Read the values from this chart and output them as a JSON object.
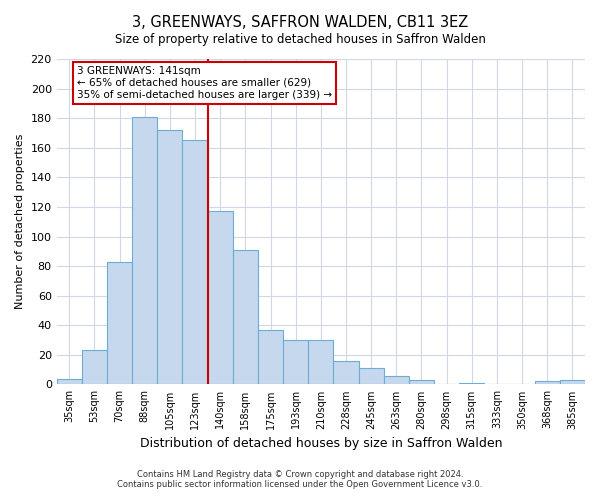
{
  "title": "3, GREENWAYS, SAFFRON WALDEN, CB11 3EZ",
  "subtitle": "Size of property relative to detached houses in Saffron Walden",
  "xlabel": "Distribution of detached houses by size in Saffron Walden",
  "ylabel": "Number of detached properties",
  "footer_line1": "Contains HM Land Registry data © Crown copyright and database right 2024.",
  "footer_line2": "Contains public sector information licensed under the Open Government Licence v3.0.",
  "categories": [
    "35sqm",
    "53sqm",
    "70sqm",
    "88sqm",
    "105sqm",
    "123sqm",
    "140sqm",
    "158sqm",
    "175sqm",
    "193sqm",
    "210sqm",
    "228sqm",
    "245sqm",
    "263sqm",
    "280sqm",
    "298sqm",
    "315sqm",
    "333sqm",
    "350sqm",
    "368sqm",
    "385sqm"
  ],
  "values": [
    4,
    23,
    83,
    181,
    172,
    165,
    117,
    91,
    37,
    30,
    30,
    16,
    11,
    6,
    3,
    0,
    1,
    0,
    0,
    2,
    3
  ],
  "bar_color": "#c5d8ed",
  "bar_edge_color": "#6aaed6",
  "vline_x_index": 6,
  "vline_color": "#cc0000",
  "annotation_title": "3 GREENWAYS: 141sqm",
  "annotation_line1": "← 65% of detached houses are smaller (629)",
  "annotation_line2": "35% of semi-detached houses are larger (339) →",
  "annotation_box_color": "#ffffff",
  "annotation_box_edge_color": "#cc0000",
  "ylim": [
    0,
    220
  ],
  "yticks": [
    0,
    20,
    40,
    60,
    80,
    100,
    120,
    140,
    160,
    180,
    200,
    220
  ],
  "bg_color": "#ffffff",
  "plot_bg_color": "#ffffff",
  "grid_color": "#d0d8e8"
}
